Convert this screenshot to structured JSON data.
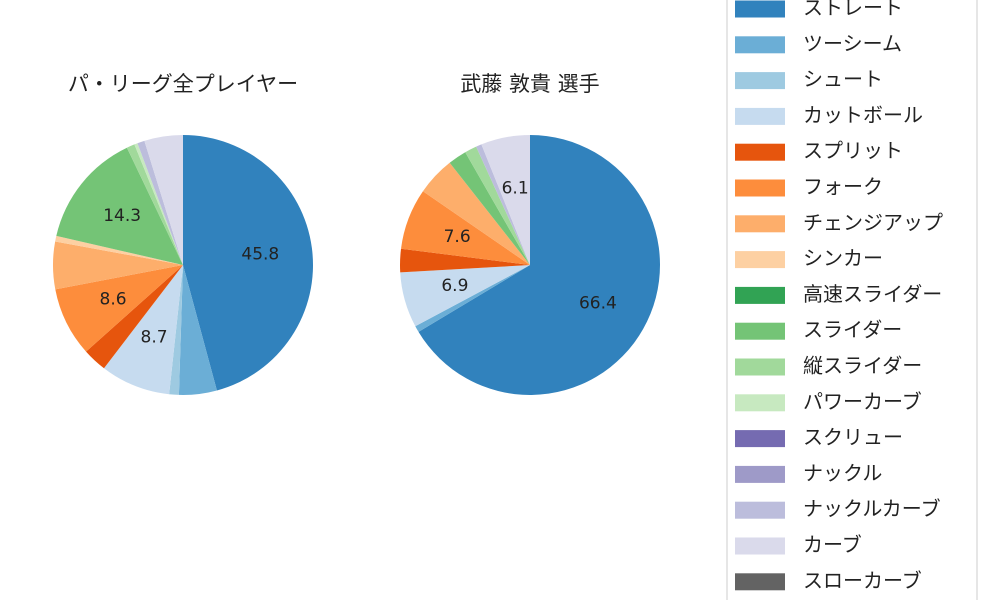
{
  "chart_data": {
    "type": "pie",
    "legend": "right",
    "categories": [
      "ストレート",
      "ツーシーム",
      "シュート",
      "カットボール",
      "スプリット",
      "フォーク",
      "チェンジアップ",
      "シンカー",
      "高速スライダー",
      "スライダー",
      "縦スライダー",
      "パワーカーブ",
      "スクリュー",
      "ナックル",
      "ナックルカーブ",
      "カーブ",
      "スローカーブ"
    ],
    "colors": [
      "#3182bd",
      "#6baed6",
      "#9ecae1",
      "#c6dbef",
      "#e6550d",
      "#fd8d3c",
      "#fdae6b",
      "#fdd0a2",
      "#31a354",
      "#74c476",
      "#a1d99b",
      "#c7e9c0",
      "#756bb1",
      "#9e9ac8",
      "#bcbddc",
      "#dadaeb",
      "#636363"
    ],
    "series": [
      {
        "name": "パ・リーグ全プレイヤー",
        "values": [
          45.8,
          4.7,
          1.2,
          8.7,
          3.0,
          8.6,
          5.9,
          0.7,
          0,
          14.3,
          1.0,
          0.4,
          0,
          0,
          0.9,
          4.8,
          0
        ]
      },
      {
        "name": "武藤 敦貴  選手",
        "values": [
          66.4,
          0.8,
          0,
          6.9,
          2.9,
          7.6,
          4.8,
          0,
          0,
          2.3,
          1.5,
          0,
          0,
          0,
          0.7,
          6.1,
          0
        ]
      }
    ]
  }
}
